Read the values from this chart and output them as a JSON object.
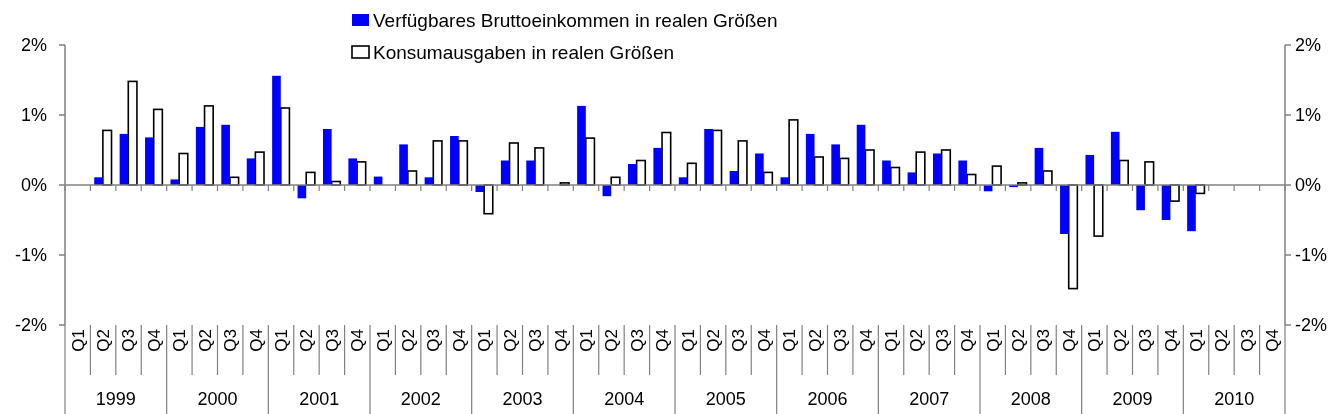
{
  "chart_data": {
    "type": "bar",
    "categories": [
      "Q1",
      "Q2",
      "Q3",
      "Q4",
      "Q1",
      "Q2",
      "Q3",
      "Q4",
      "Q1",
      "Q2",
      "Q3",
      "Q4",
      "Q1",
      "Q2",
      "Q3",
      "Q4",
      "Q1",
      "Q2",
      "Q3",
      "Q4",
      "Q1",
      "Q2",
      "Q3",
      "Q4",
      "Q1",
      "Q2",
      "Q3",
      "Q4",
      "Q1",
      "Q2",
      "Q3",
      "Q4",
      "Q1",
      "Q2",
      "Q3",
      "Q4",
      "Q1",
      "Q2",
      "Q3",
      "Q4",
      "Q1",
      "Q2",
      "Q3",
      "Q4",
      "Q1",
      "Q2",
      "Q3",
      "Q4"
    ],
    "series": [
      {
        "name": "Verfügbares Bruttoeinkommen in realen Größen",
        "color": "#0000ff",
        "values": [
          null,
          0.11,
          0.73,
          0.68,
          0.08,
          0.83,
          0.86,
          0.38,
          1.56,
          -0.19,
          0.8,
          0.38,
          0.12,
          0.58,
          0.11,
          0.7,
          -0.1,
          0.35,
          0.35,
          0,
          1.13,
          -0.16,
          0.3,
          0.53,
          0.11,
          0.8,
          0.2,
          0.45,
          0.11,
          0.73,
          0.58,
          0.86,
          0.35,
          0.18,
          0.45,
          0.35,
          -0.09,
          -0.03,
          0.53,
          -0.7,
          0.43,
          0.76,
          -0.36,
          -0.5,
          -0.66,
          null,
          null,
          null
        ]
      },
      {
        "name": "Konsumausgaben in realen Größen",
        "color": "#ffffff",
        "values": [
          null,
          0.78,
          1.48,
          1.08,
          0.45,
          1.13,
          0.11,
          0.47,
          1.1,
          0.18,
          0.05,
          0.33,
          0,
          0.2,
          0.63,
          0.63,
          -0.41,
          0.6,
          0.53,
          0.03,
          0.67,
          0.11,
          0.35,
          0.75,
          0.31,
          0.78,
          0.63,
          0.18,
          0.93,
          0.4,
          0.38,
          0.5,
          0.25,
          0.47,
          0.5,
          0.15,
          0.27,
          0.03,
          0.2,
          -1.48,
          -0.73,
          0.35,
          0.33,
          -0.23,
          -0.12,
          null,
          null,
          null
        ]
      }
    ],
    "ylim": [
      -2,
      2
    ],
    "yticks": [
      {
        "value": -2,
        "label": "-2%"
      },
      {
        "value": -1,
        "label": "-1%"
      },
      {
        "value": 0,
        "label": "0%"
      },
      {
        "value": 1,
        "label": "1%"
      },
      {
        "value": 2,
        "label": "2%"
      }
    ],
    "y2lim": [
      -2,
      2
    ],
    "y2ticks": [
      {
        "value": -2,
        "label": "-2%"
      },
      {
        "value": -1,
        "label": "-1%"
      },
      {
        "value": 0,
        "label": "0%"
      },
      {
        "value": 1,
        "label": "1%"
      },
      {
        "value": 2,
        "label": "2%"
      }
    ],
    "annotations": [
      "1999",
      "2000",
      "2001",
      "2002",
      "2003",
      "2004",
      "2005",
      "2006",
      "2007",
      "2008",
      "2009",
      "2010"
    ],
    "legend": "top"
  }
}
